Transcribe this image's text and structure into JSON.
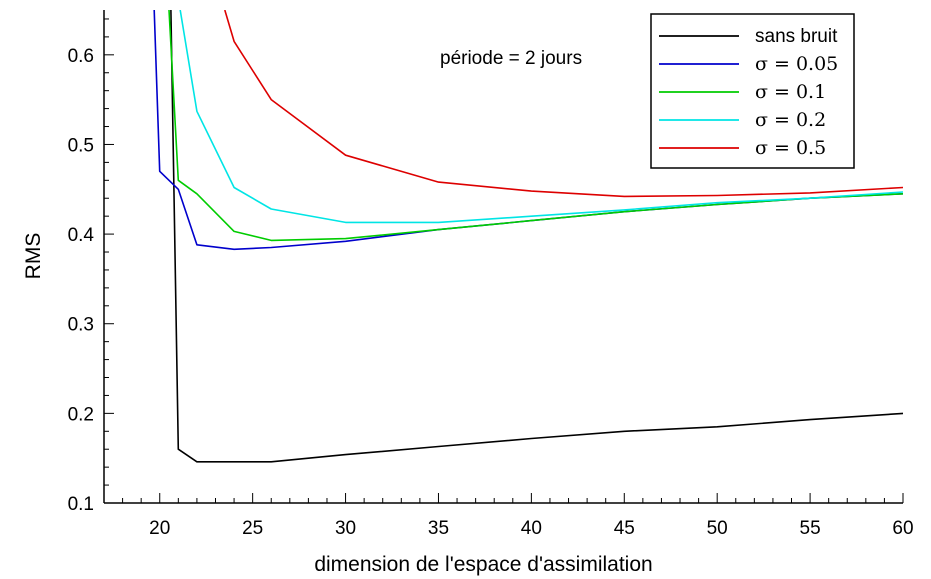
{
  "chart_data": {
    "type": "line",
    "title": "",
    "xlabel": "dimension de l'espace d'assimilation",
    "ylabel": "RMS",
    "xlim": [
      17,
      60
    ],
    "ylim": [
      0.1,
      0.65
    ],
    "xticks": [
      20,
      25,
      30,
      35,
      40,
      45,
      50,
      55,
      60
    ],
    "yticks": [
      0.1,
      0.2,
      0.3,
      0.4,
      0.5,
      0.6
    ],
    "xtick_labels": [
      "20",
      "25",
      "30",
      "35",
      "40",
      "45",
      "50",
      "55",
      "60"
    ],
    "ytick_labels": [
      "0.1",
      "0.2",
      "0.3",
      "0.4",
      "0.5",
      "0.6"
    ],
    "annotation": "période = 2 jours",
    "legend_position": "top-right",
    "grid": false,
    "series": [
      {
        "name": "sans bruit",
        "color": "#000000",
        "x": [
          20.6,
          21,
          22,
          24,
          26,
          30,
          35,
          40,
          45,
          50,
          55,
          60
        ],
        "y": [
          0.65,
          0.16,
          0.146,
          0.146,
          0.146,
          0.154,
          0.163,
          0.172,
          0.18,
          0.185,
          0.193,
          0.2
        ]
      },
      {
        "name": "σ = 0.05",
        "color": "#0000cc",
        "x": [
          19.7,
          20,
          21,
          22,
          24,
          26,
          30,
          35,
          40,
          45,
          50,
          55,
          60
        ],
        "y": [
          0.65,
          0.47,
          0.45,
          0.388,
          0.383,
          0.385,
          0.392,
          0.405,
          0.415,
          0.425,
          0.433,
          0.44,
          0.445
        ]
      },
      {
        "name": "σ = 0.1",
        "color": "#00cc00",
        "x": [
          20.5,
          21,
          22,
          24,
          26,
          30,
          35,
          40,
          45,
          50,
          55,
          60
        ],
        "y": [
          0.65,
          0.46,
          0.445,
          0.403,
          0.393,
          0.395,
          0.405,
          0.415,
          0.425,
          0.433,
          0.44,
          0.445
        ]
      },
      {
        "name": "σ = 0.2",
        "color": "#00e5e5",
        "x": [
          21.1,
          22,
          24,
          26,
          30,
          35,
          40,
          45,
          50,
          55,
          60
        ],
        "y": [
          0.65,
          0.537,
          0.452,
          0.428,
          0.413,
          0.413,
          0.42,
          0.427,
          0.435,
          0.44,
          0.447
        ]
      },
      {
        "name": "σ = 0.5",
        "color": "#dd0000",
        "x": [
          23.5,
          24,
          26,
          30,
          35,
          40,
          45,
          50,
          55,
          60
        ],
        "y": [
          0.65,
          0.615,
          0.55,
          0.488,
          0.458,
          0.448,
          0.442,
          0.443,
          0.446,
          0.452
        ]
      }
    ]
  }
}
